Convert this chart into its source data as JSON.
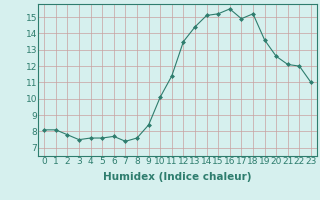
{
  "x": [
    0,
    1,
    2,
    3,
    4,
    5,
    6,
    7,
    8,
    9,
    10,
    11,
    12,
    13,
    14,
    15,
    16,
    17,
    18,
    19,
    20,
    21,
    22,
    23
  ],
  "y": [
    8.1,
    8.1,
    7.8,
    7.5,
    7.6,
    7.6,
    7.7,
    7.4,
    7.6,
    8.4,
    10.1,
    11.4,
    13.5,
    14.4,
    15.1,
    15.2,
    15.5,
    14.9,
    15.2,
    13.6,
    12.6,
    12.1,
    12.0,
    11.0
  ],
  "line_color": "#2e7d6e",
  "marker": "D",
  "marker_size": 2.0,
  "bg_color": "#d6f0ee",
  "grid_color": "#c8a0a0",
  "xlabel": "Humidex (Indice chaleur)",
  "xlabel_fontsize": 7.5,
  "ylabel_ticks": [
    7,
    8,
    9,
    10,
    11,
    12,
    13,
    14,
    15
  ],
  "ylim": [
    6.5,
    15.8
  ],
  "xlim": [
    -0.5,
    23.5
  ],
  "tick_fontsize": 6.5,
  "tick_color": "#2e7d6e",
  "spine_color": "#2e7d6e"
}
